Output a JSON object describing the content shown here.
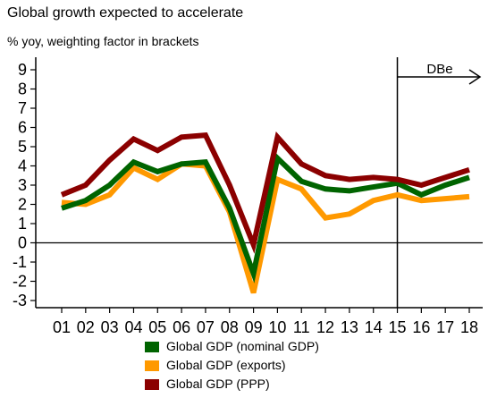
{
  "header": {
    "title": "Global growth expected to accelerate",
    "subtitle": "% yoy, weighting factor in brackets"
  },
  "chart_data": {
    "type": "line",
    "categories": [
      "01",
      "02",
      "03",
      "04",
      "05",
      "06",
      "07",
      "08",
      "09",
      "10",
      "11",
      "12",
      "13",
      "14",
      "15",
      "16",
      "17",
      "18"
    ],
    "ylim": [
      -3,
      9
    ],
    "yticks": [
      "-3",
      "-2",
      "-1",
      "0",
      "1",
      "2",
      "3",
      "4",
      "5",
      "6",
      "7",
      "8",
      "9"
    ],
    "forecast_start": "15",
    "forecast_label": "DBe",
    "grid": false,
    "legend_position": "bottom",
    "series": [
      {
        "name": "Global GDP (nominal GDP)",
        "color": "#006400",
        "values": [
          1.8,
          2.2,
          3.0,
          4.2,
          3.7,
          4.1,
          4.2,
          1.8,
          -1.6,
          4.4,
          3.2,
          2.8,
          2.7,
          2.9,
          3.1,
          2.5,
          3.0,
          3.4
        ]
      },
      {
        "name": "Global GDP (exports)",
        "color": "#FF9900",
        "values": [
          2.1,
          2.0,
          2.5,
          3.9,
          3.3,
          4.1,
          4.0,
          1.6,
          -2.6,
          3.3,
          2.8,
          1.3,
          1.5,
          2.2,
          2.5,
          2.2,
          2.3,
          2.4
        ]
      },
      {
        "name": "Global GDP (PPP)",
        "color": "#8B0000",
        "values": [
          2.5,
          3.0,
          4.3,
          5.4,
          4.8,
          5.5,
          5.6,
          3.0,
          -0.1,
          5.5,
          4.1,
          3.5,
          3.3,
          3.4,
          3.3,
          3.0,
          3.4,
          3.8
        ]
      }
    ]
  }
}
